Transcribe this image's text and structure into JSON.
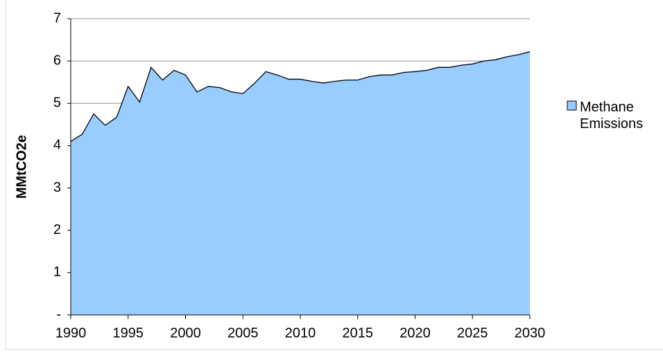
{
  "chart_data": {
    "type": "area",
    "ylabel": "MMtCO2e",
    "x": [
      1990,
      1991,
      1992,
      1993,
      1994,
      1995,
      1996,
      1997,
      1998,
      1999,
      2000,
      2001,
      2002,
      2003,
      2004,
      2005,
      2006,
      2007,
      2008,
      2009,
      2010,
      2011,
      2012,
      2013,
      2014,
      2015,
      2016,
      2017,
      2018,
      2019,
      2020,
      2021,
      2022,
      2023,
      2024,
      2025,
      2026,
      2027,
      2028,
      2029,
      2030
    ],
    "series": [
      {
        "name": "Methane Emissions",
        "color": "#99ccff",
        "values": [
          4.1,
          4.27,
          4.75,
          4.48,
          4.67,
          5.4,
          5.03,
          5.85,
          5.55,
          5.78,
          5.67,
          5.27,
          5.4,
          5.37,
          5.27,
          5.23,
          5.47,
          5.75,
          5.67,
          5.57,
          5.57,
          5.52,
          5.48,
          5.52,
          5.55,
          5.55,
          5.63,
          5.67,
          5.67,
          5.73,
          5.75,
          5.78,
          5.85,
          5.85,
          5.9,
          5.93,
          6.0,
          6.03,
          6.1,
          6.15,
          6.22
        ]
      }
    ],
    "xlim": [
      1990,
      2030
    ],
    "xticks": [
      1990,
      1995,
      2000,
      2005,
      2010,
      2015,
      2020,
      2025,
      2030
    ],
    "ylim": [
      0,
      7
    ],
    "yticks": [
      {
        "value": 0,
        "label": "-"
      },
      1,
      2,
      3,
      4,
      5,
      6,
      7
    ],
    "grid": true,
    "legend": "right"
  }
}
